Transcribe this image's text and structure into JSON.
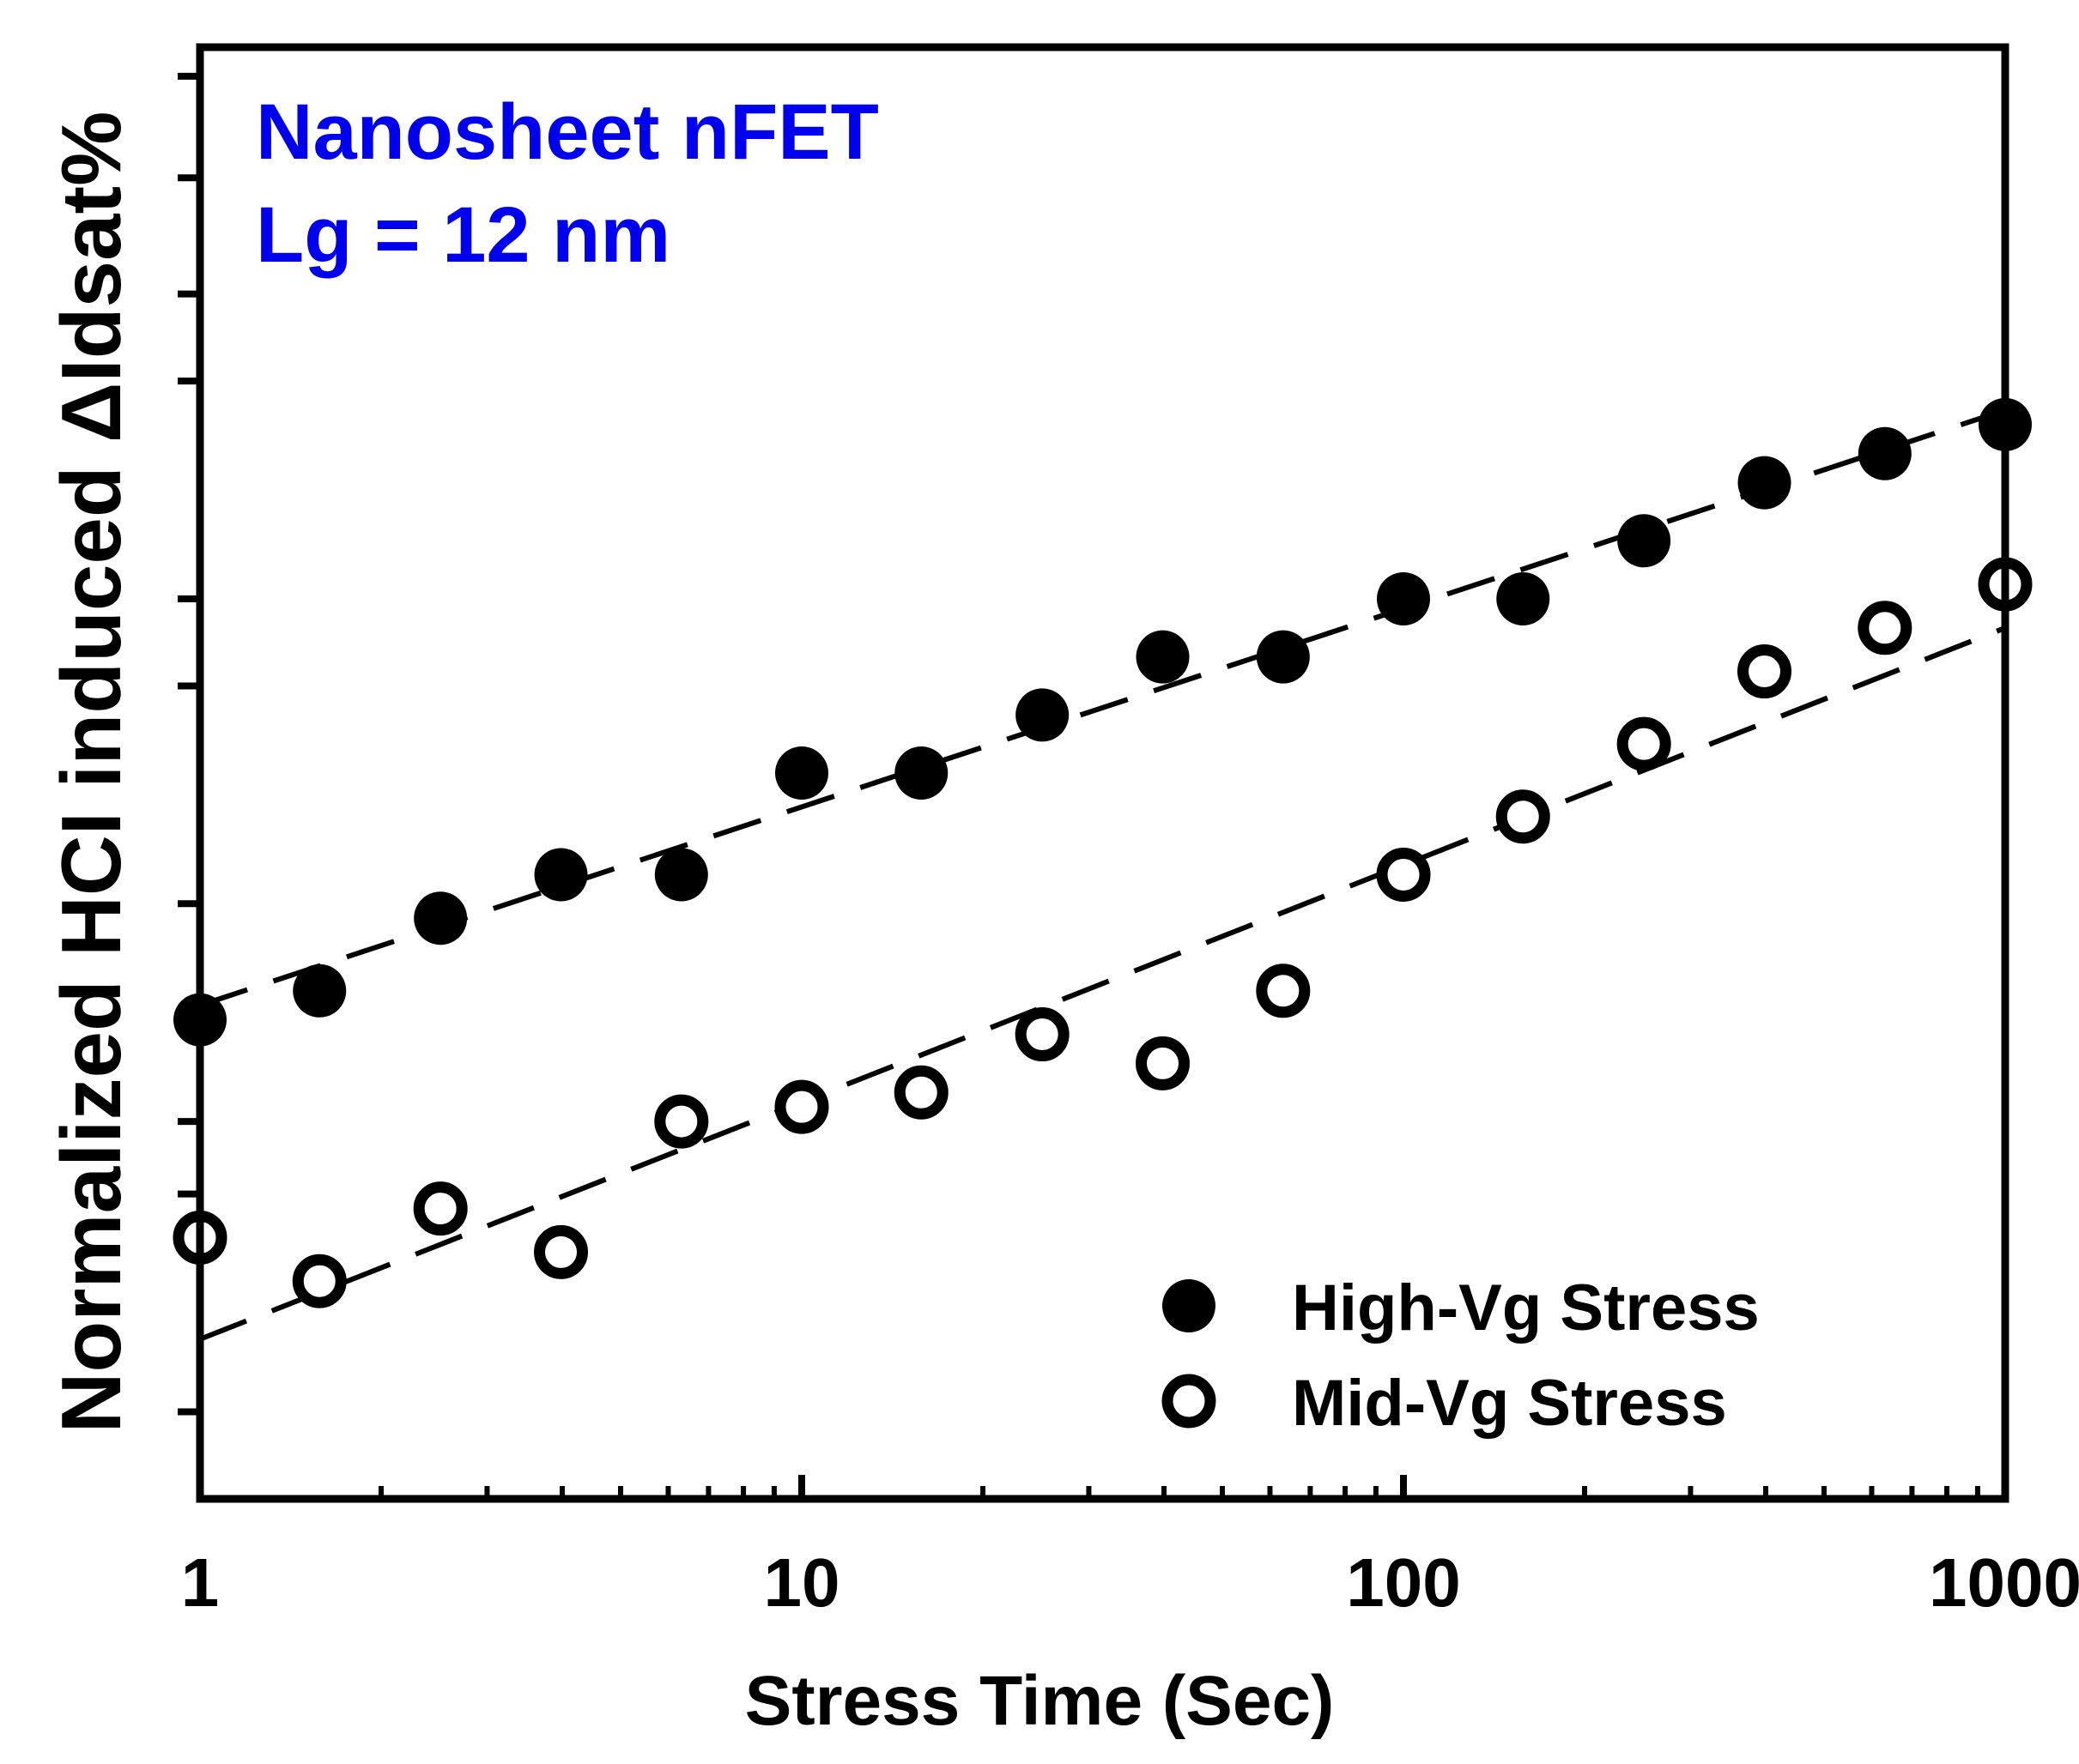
{
  "chart_data": {
    "type": "scatter",
    "title": "",
    "xlabel": "Stress Time (Sec)",
    "ylabel": "Normalized HCI induced ΔIdsat%",
    "xscale": "log",
    "xlim": [
      1,
      1000
    ],
    "ylim": [
      0,
      1
    ],
    "x_tick_labels": [
      "1",
      "10",
      "100",
      "1000"
    ],
    "x_tick_values": [
      1,
      10,
      100,
      1000
    ],
    "y_tick_values": [
      0.06,
      0.21,
      0.26,
      0.41,
      0.56,
      0.62,
      0.77,
      0.83,
      0.91,
      0.98
    ],
    "annotations": [
      "Nanosheet nFET",
      "Lg = 12 nm"
    ],
    "annotation_color": "#0000ee",
    "legend_position": "bottom-right",
    "series": [
      {
        "name": "High-Vg Stress",
        "marker": "filled-circle",
        "color": "#000000",
        "x": [
          1,
          1.58,
          2.51,
          3.98,
          6.31,
          10,
          15.8,
          25.1,
          39.8,
          63.1,
          100,
          158,
          251,
          398,
          631,
          1000
        ],
        "y": [
          0.33,
          0.35,
          0.4,
          0.43,
          0.43,
          0.5,
          0.5,
          0.54,
          0.58,
          0.58,
          0.62,
          0.62,
          0.66,
          0.7,
          0.72,
          0.74
        ],
        "fit": {
          "x": [
            1,
            1000
          ],
          "y": [
            0.34,
            0.75
          ]
        }
      },
      {
        "name": "Mid-Vg Stress",
        "marker": "open-circle",
        "color": "#000000",
        "x": [
          1,
          1.58,
          2.51,
          3.98,
          6.31,
          10,
          15.8,
          25.1,
          39.8,
          63.1,
          100,
          158,
          251,
          398,
          631,
          1000
        ],
        "y": [
          0.18,
          0.15,
          0.2,
          0.17,
          0.26,
          0.27,
          0.28,
          0.32,
          0.3,
          0.35,
          0.43,
          0.47,
          0.52,
          0.57,
          0.6,
          0.63
        ],
        "fit": {
          "x": [
            1,
            1000
          ],
          "y": [
            0.11,
            0.6
          ]
        }
      }
    ]
  }
}
